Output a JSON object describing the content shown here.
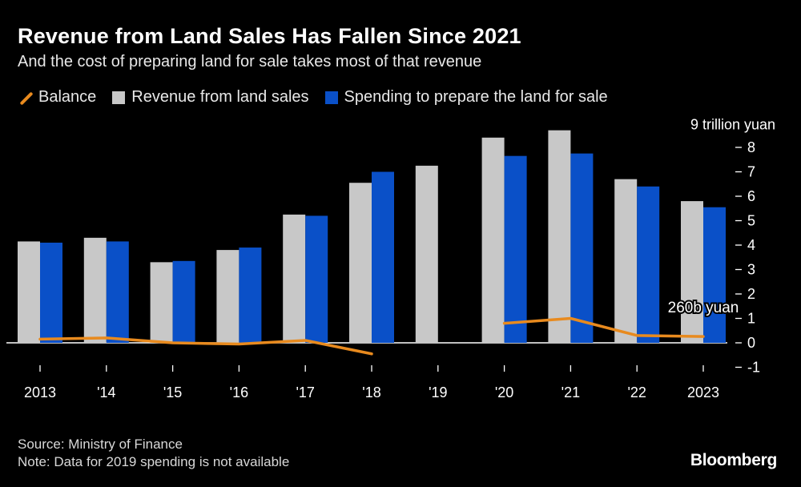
{
  "header": {
    "title": "Revenue from Land Sales Has Fallen Since 2021",
    "subtitle": "And the cost of preparing land for sale takes most of that revenue"
  },
  "legend": {
    "balance": "Balance",
    "revenue": "Revenue from land sales",
    "spending": "Spending to prepare the land for sale"
  },
  "colors": {
    "revenue": "#c8c8c8",
    "spending": "#0a50c8",
    "balance": "#e88a1e",
    "axis": "#ffffff"
  },
  "chart_data": {
    "type": "bar",
    "title": "Revenue from Land Sales Has Fallen Since 2021",
    "unit_label": "9 trillion yuan",
    "categories": [
      "2013",
      "'14",
      "'15",
      "'16",
      "'17",
      "'18",
      "'19",
      "'20",
      "'21",
      "'22",
      "2023"
    ],
    "series": [
      {
        "name": "Revenue from land sales",
        "type": "bar",
        "values": [
          4.15,
          4.3,
          3.3,
          3.8,
          5.25,
          6.55,
          7.25,
          8.4,
          8.7,
          6.7,
          5.8
        ]
      },
      {
        "name": "Spending to prepare the land for sale",
        "type": "bar",
        "values": [
          4.1,
          4.15,
          3.35,
          3.9,
          5.2,
          7.0,
          null,
          7.65,
          7.75,
          6.4,
          5.55
        ]
      },
      {
        "name": "Balance",
        "type": "line",
        "values": [
          0.15,
          0.2,
          0.0,
          -0.05,
          0.1,
          -0.45,
          null,
          0.8,
          1.0,
          0.3,
          0.26
        ]
      }
    ],
    "ylim": [
      -1,
      9
    ],
    "yticks": [
      "-1",
      "0",
      "1",
      "2",
      "3",
      "4",
      "5",
      "6",
      "7",
      "8"
    ],
    "ytick_values": [
      -1,
      0,
      1,
      2,
      3,
      4,
      5,
      6,
      7,
      8
    ],
    "annotation": "260b yuan",
    "legend_position": "top-left"
  },
  "footer": {
    "source": "Source: Ministry of Finance",
    "note": "Note: Data for 2019 spending is not available",
    "brand": "Bloomberg"
  }
}
